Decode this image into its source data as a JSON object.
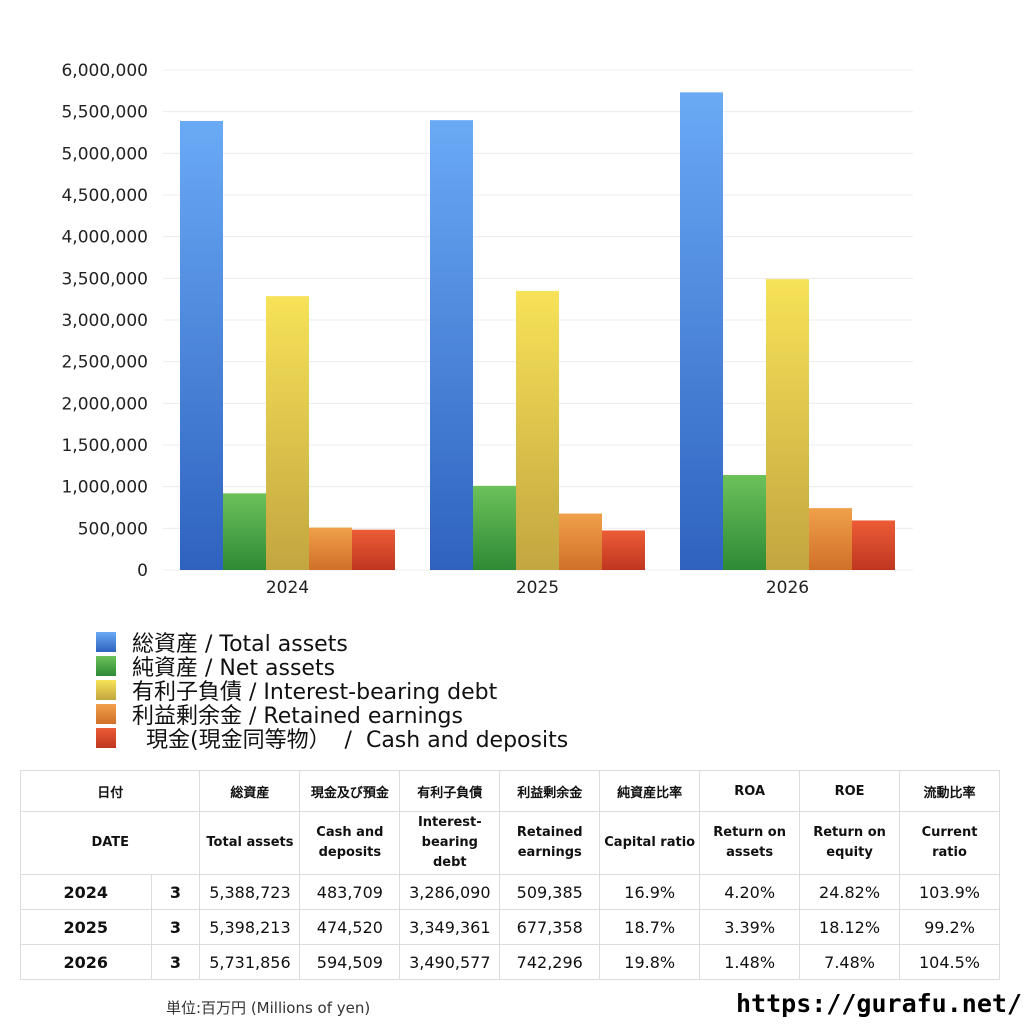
{
  "chart_data": {
    "type": "bar",
    "categories": [
      "2024",
      "2025",
      "2026"
    ],
    "y_ticks": [
      "0",
      "500,000",
      "1,000,000",
      "1,500,000",
      "2,000,000",
      "2,500,000",
      "3,000,000",
      "3,500,000",
      "4,000,000",
      "4,500,000",
      "5,000,000",
      "5,500,000",
      "6,000,000"
    ],
    "ylim": [
      0,
      6000000
    ],
    "grid": true,
    "legend_placement": "bottom",
    "series": [
      {
        "name": "総資産 / Total assets",
        "values": [
          5388723,
          5398213,
          5731856
        ],
        "color_top": "#6aaaf5",
        "color_bottom": "#2f62bf"
      },
      {
        "name": "純資産 / Net assets",
        "values": [
          920000,
          1010000,
          1140000
        ],
        "color_top": "#6cc15a",
        "color_bottom": "#2e8a35"
      },
      {
        "name": "有利子負債 / Interest-bearing debt",
        "values": [
          3286090,
          3349361,
          3490577
        ],
        "color_top": "#f7e258",
        "color_bottom": "#c2a640"
      },
      {
        "name": "利益剰余金 / Retained earnings",
        "values": [
          509385,
          677358,
          742296
        ],
        "color_top": "#f0a04a",
        "color_bottom": "#d0702a"
      },
      {
        "name": "  現金(現金同等物）  /  Cash and deposits",
        "values": [
          483709,
          474520,
          594509
        ],
        "color_top": "#ec5c36",
        "color_bottom": "#bf3620"
      }
    ]
  },
  "table": {
    "header_jp": [
      "日付",
      "",
      "総資産",
      "現金及び預金",
      "有利子負債",
      "利益剰余金",
      "純資産比率",
      "ROA",
      "ROE",
      "流動比率"
    ],
    "header_en": [
      "DATE",
      "",
      "Total assets",
      "Cash and deposits",
      "Interest-bearing debt",
      "Retained earnings",
      "Capital ratio",
      "Return on assets",
      "Return on equity",
      "Current ratio"
    ],
    "rows": [
      [
        "2024",
        "3",
        "5,388,723",
        "483,709",
        "3,286,090",
        "509,385",
        "16.9%",
        "4.20%",
        "24.82%",
        "103.9%"
      ],
      [
        "2025",
        "3",
        "5,398,213",
        "474,520",
        "3,349,361",
        "677,358",
        "18.7%",
        "3.39%",
        "18.12%",
        "99.2%"
      ],
      [
        "2026",
        "3",
        "5,731,856",
        "594,509",
        "3,490,577",
        "742,296",
        "19.8%",
        "1.48%",
        "7.48%",
        "104.5%"
      ]
    ]
  },
  "footer": {
    "unit_label": "単位:百万円 (Millions of yen)",
    "site": "https://gurafu.net/"
  }
}
